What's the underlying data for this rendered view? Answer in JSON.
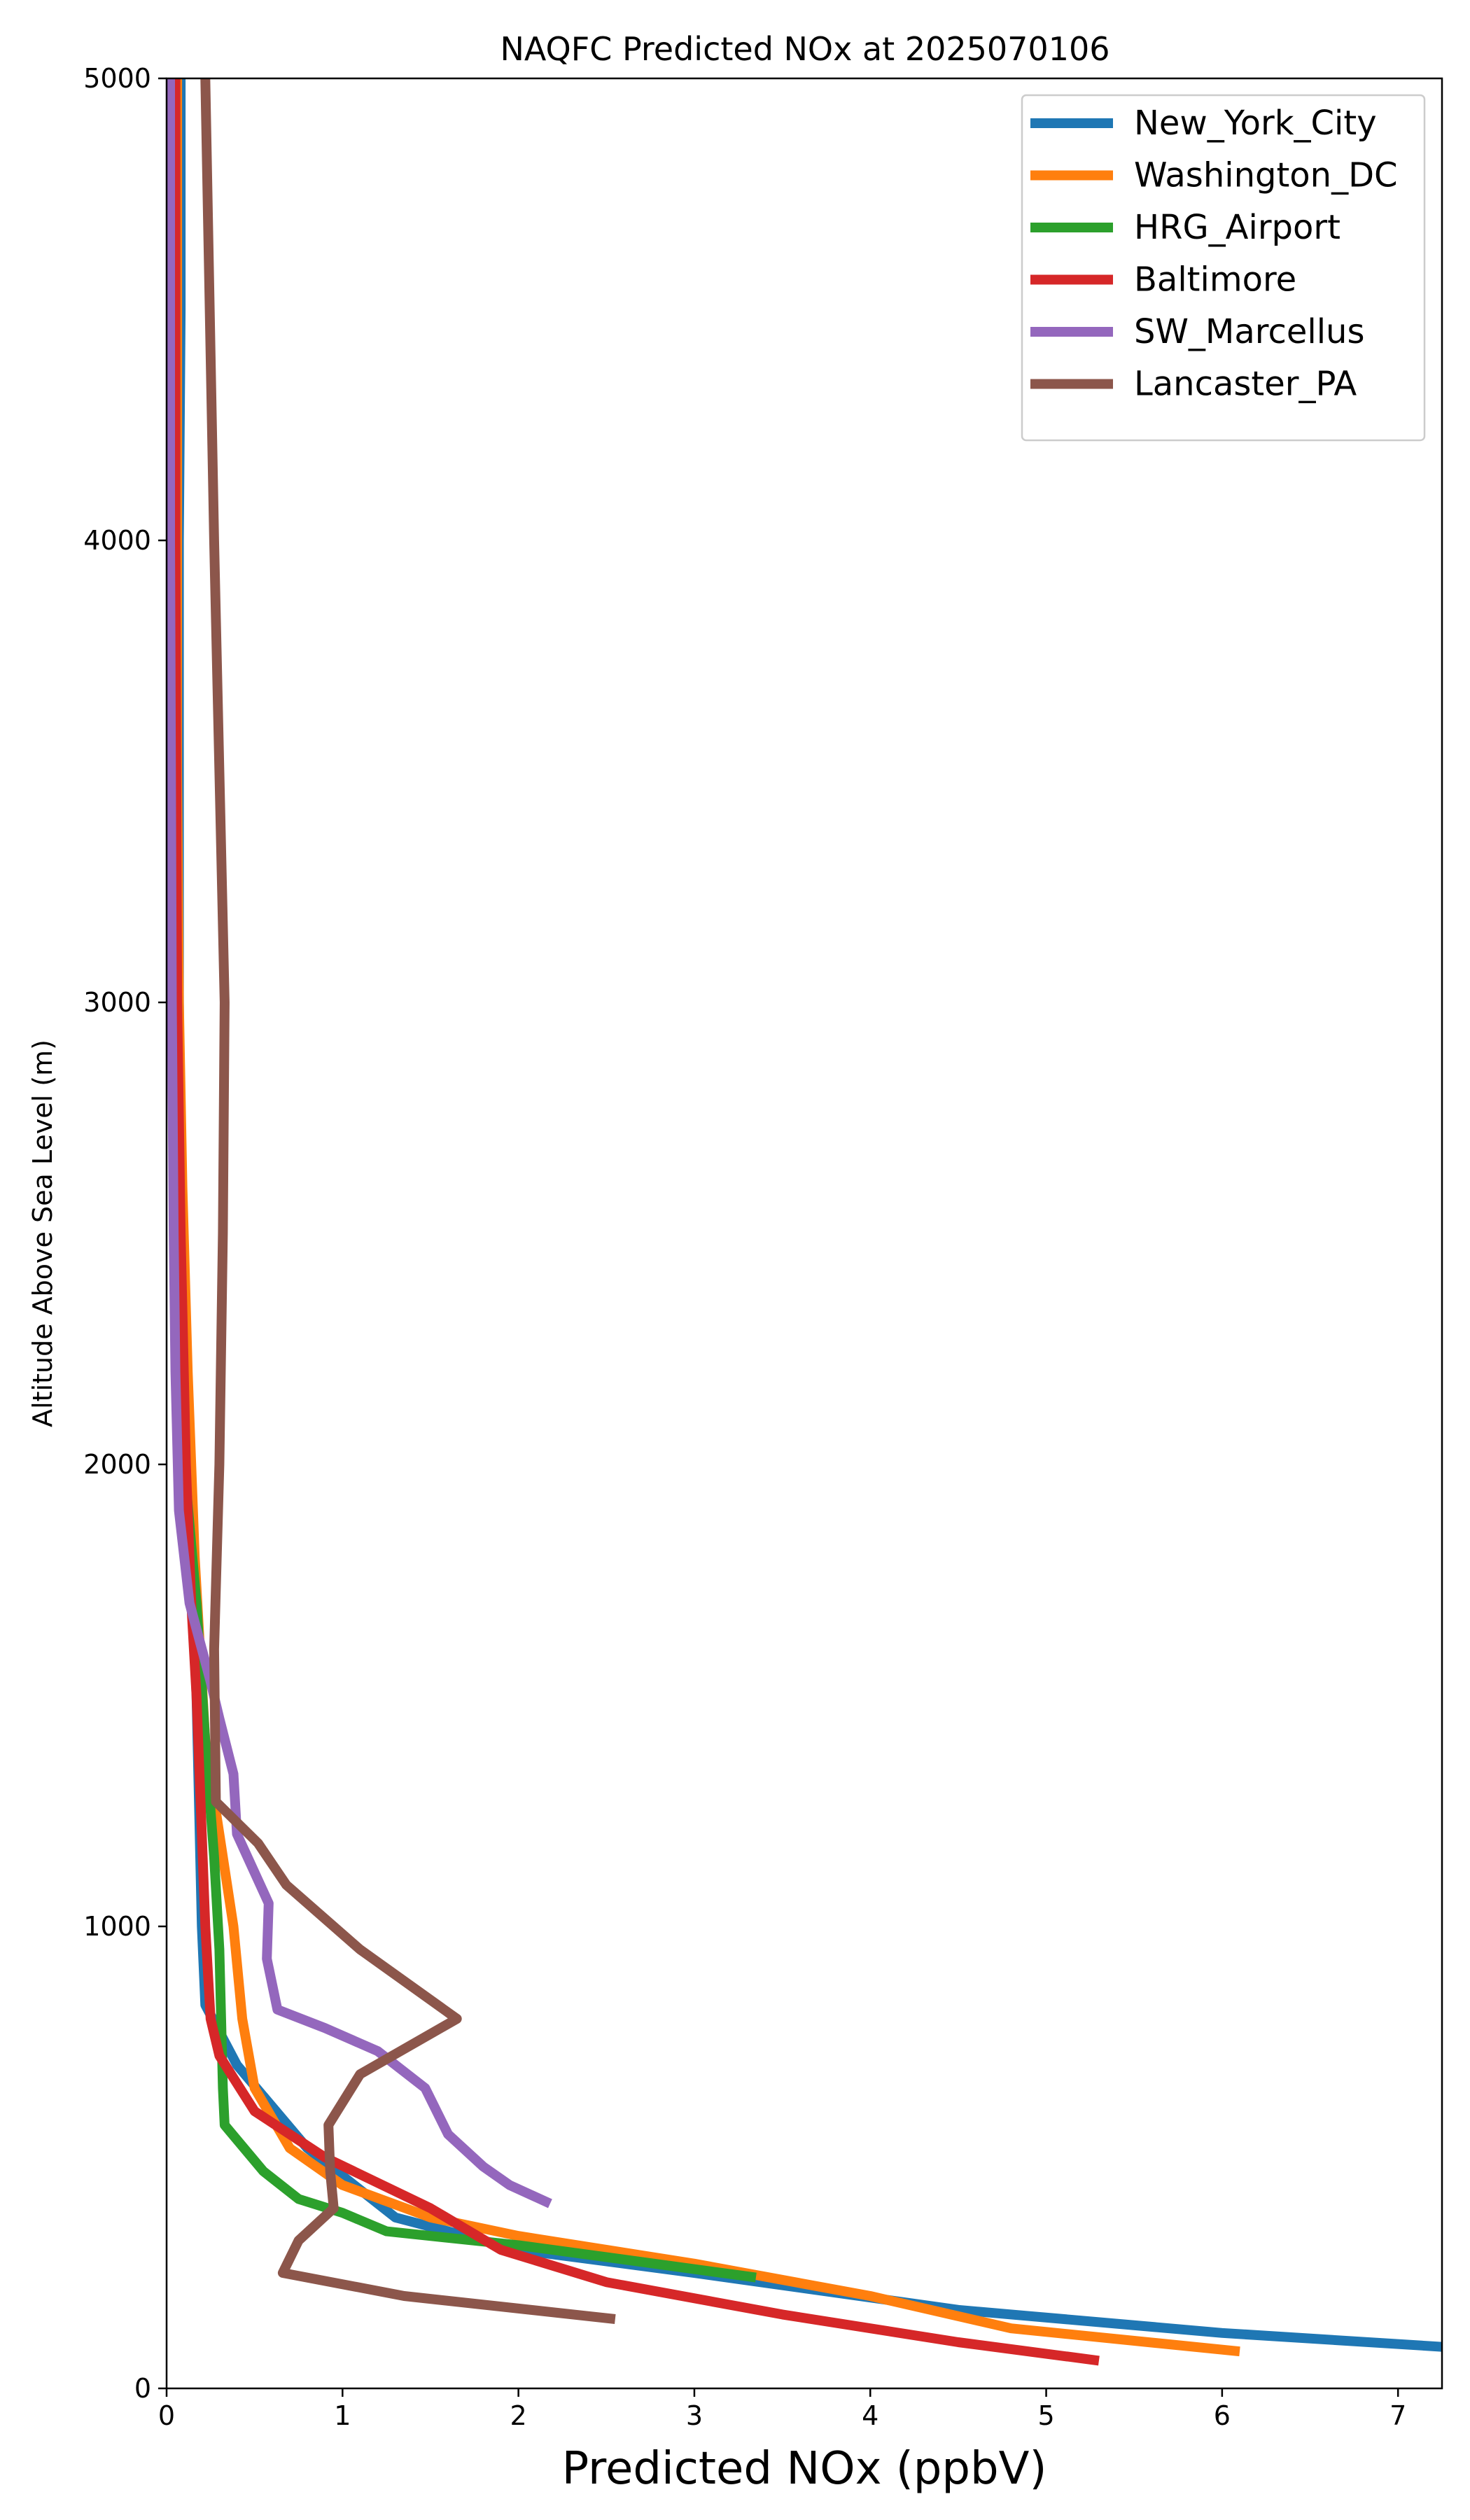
{
  "chart_data": {
    "type": "line",
    "title": "NAQFC Predicted NOx at 2025070106",
    "xlabel": "Predicted NOx (ppbV)",
    "ylabel": "Altitude Above Sea Level (m)",
    "xlim": [
      0,
      7.25
    ],
    "ylim": [
      0,
      5000
    ],
    "xticks": [
      0,
      1,
      2,
      3,
      4,
      5,
      6,
      7
    ],
    "yticks": [
      0,
      1000,
      2000,
      3000,
      4000,
      5000
    ],
    "grid": false,
    "legend_position": "top-right",
    "series": [
      {
        "name": "New_York_City",
        "color": "#1f77b4",
        "points": [
          [
            0.08,
            5000
          ],
          [
            0.08,
            4500
          ],
          [
            0.07,
            4000
          ],
          [
            0.07,
            3500
          ],
          [
            0.07,
            3000
          ],
          [
            0.08,
            2500
          ],
          [
            0.12,
            2000
          ],
          [
            0.17,
            1500
          ],
          [
            0.2,
            1000
          ],
          [
            0.22,
            830
          ],
          [
            0.4,
            700
          ],
          [
            0.8,
            520
          ],
          [
            1.3,
            370
          ],
          [
            2.0,
            300
          ],
          [
            3.0,
            250
          ],
          [
            4.5,
            170
          ],
          [
            6.0,
            120
          ],
          [
            7.25,
            90
          ]
        ]
      },
      {
        "name": "Washington_DC",
        "color": "#ff7f0e",
        "points": [
          [
            0.06,
            5000
          ],
          [
            0.06,
            4000
          ],
          [
            0.06,
            3500
          ],
          [
            0.07,
            3000
          ],
          [
            0.09,
            2600
          ],
          [
            0.12,
            2200
          ],
          [
            0.16,
            1800
          ],
          [
            0.22,
            1400
          ],
          [
            0.3,
            1200
          ],
          [
            0.38,
            1000
          ],
          [
            0.43,
            800
          ],
          [
            0.5,
            650
          ],
          [
            0.7,
            520
          ],
          [
            1.0,
            440
          ],
          [
            1.5,
            370
          ],
          [
            2.0,
            330
          ],
          [
            3.0,
            270
          ],
          [
            4.0,
            200
          ],
          [
            4.8,
            130
          ],
          [
            6.1,
            80
          ]
        ]
      },
      {
        "name": "HRG_Airport",
        "color": "#2ca02c",
        "points": [
          [
            0.05,
            5000
          ],
          [
            0.05,
            4000
          ],
          [
            0.05,
            3500
          ],
          [
            0.06,
            3000
          ],
          [
            0.07,
            2500
          ],
          [
            0.1,
            2000
          ],
          [
            0.17,
            1700
          ],
          [
            0.22,
            1400
          ],
          [
            0.27,
            1150
          ],
          [
            0.3,
            950
          ],
          [
            0.31,
            800
          ],
          [
            0.32,
            650
          ],
          [
            0.33,
            570
          ],
          [
            0.55,
            470
          ],
          [
            0.75,
            410
          ],
          [
            1.0,
            380
          ],
          [
            1.25,
            340
          ],
          [
            2.0,
            310
          ],
          [
            3.35,
            240
          ]
        ]
      },
      {
        "name": "Baltimore",
        "color": "#d62728",
        "points": [
          [
            0.05,
            5000
          ],
          [
            0.05,
            4000
          ],
          [
            0.06,
            3000
          ],
          [
            0.08,
            2500
          ],
          [
            0.11,
            2000
          ],
          [
            0.14,
            1700
          ],
          [
            0.17,
            1500
          ],
          [
            0.2,
            1200
          ],
          [
            0.22,
            1000
          ],
          [
            0.25,
            800
          ],
          [
            0.3,
            720
          ],
          [
            0.5,
            600
          ],
          [
            0.9,
            500
          ],
          [
            1.5,
            390
          ],
          [
            1.9,
            300
          ],
          [
            2.5,
            230
          ],
          [
            3.5,
            160
          ],
          [
            4.5,
            100
          ],
          [
            5.3,
            60
          ]
        ]
      },
      {
        "name": "SW_Marcellus",
        "color": "#9467bd",
        "points": [
          [
            0.02,
            5000
          ],
          [
            0.02,
            4000
          ],
          [
            0.03,
            3000
          ],
          [
            0.04,
            2500
          ],
          [
            0.05,
            2200
          ],
          [
            0.07,
            1900
          ],
          [
            0.13,
            1700
          ],
          [
            0.25,
            1530
          ],
          [
            0.3,
            1450
          ],
          [
            0.38,
            1330
          ],
          [
            0.4,
            1200
          ],
          [
            0.58,
            1050
          ],
          [
            0.57,
            930
          ],
          [
            0.63,
            820
          ],
          [
            0.9,
            780
          ],
          [
            1.2,
            730
          ],
          [
            1.47,
            650
          ],
          [
            1.6,
            550
          ],
          [
            1.8,
            480
          ],
          [
            1.95,
            440
          ],
          [
            2.18,
            400
          ]
        ]
      },
      {
        "name": "Lancaster_PA",
        "color": "#8c564b",
        "points": [
          [
            0.22,
            5000
          ],
          [
            0.27,
            4000
          ],
          [
            0.3,
            3500
          ],
          [
            0.33,
            3000
          ],
          [
            0.32,
            2500
          ],
          [
            0.3,
            2000
          ],
          [
            0.27,
            1600
          ],
          [
            0.28,
            1270
          ],
          [
            0.52,
            1180
          ],
          [
            0.68,
            1090
          ],
          [
            1.1,
            950
          ],
          [
            1.65,
            800
          ],
          [
            1.1,
            680
          ],
          [
            0.92,
            570
          ],
          [
            0.93,
            470
          ],
          [
            0.95,
            390
          ],
          [
            0.75,
            320
          ],
          [
            0.66,
            250
          ],
          [
            1.35,
            200
          ],
          [
            2.55,
            150
          ]
        ]
      }
    ]
  }
}
